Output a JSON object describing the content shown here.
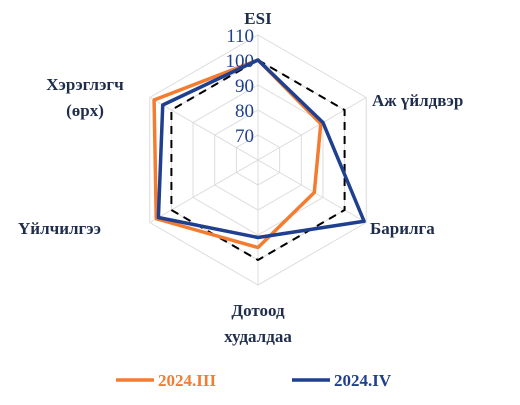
{
  "chart_data": {
    "type": "radar",
    "axes": [
      [
        "ESI"
      ],
      [
        "Аж үйлдвэр"
      ],
      [
        "Барилга"
      ],
      [
        "Дотоод",
        "худалдаа"
      ],
      [
        "Үйлчилгээ"
      ],
      [
        "Хэрэглэгч",
        "(өрх)"
      ]
    ],
    "rlim": [
      60,
      110
    ],
    "ticks": [
      "70",
      "80",
      "90",
      "100",
      "110"
    ],
    "grid": true,
    "series": [
      {
        "name": "",
        "style": "dashed",
        "color": "#000000",
        "values": [
          100,
          100,
          100,
          100,
          100,
          100
        ]
      },
      {
        "name": "2024.III",
        "style": "solid",
        "color": "#f47c30",
        "values": [
          100,
          89,
          86,
          95,
          107,
          108
        ]
      },
      {
        "name": "2024.IV",
        "style": "solid",
        "color": "#1f3f8f",
        "values": [
          100,
          90,
          109,
          91,
          106,
          104
        ]
      }
    ],
    "legend_position": "bottom"
  }
}
